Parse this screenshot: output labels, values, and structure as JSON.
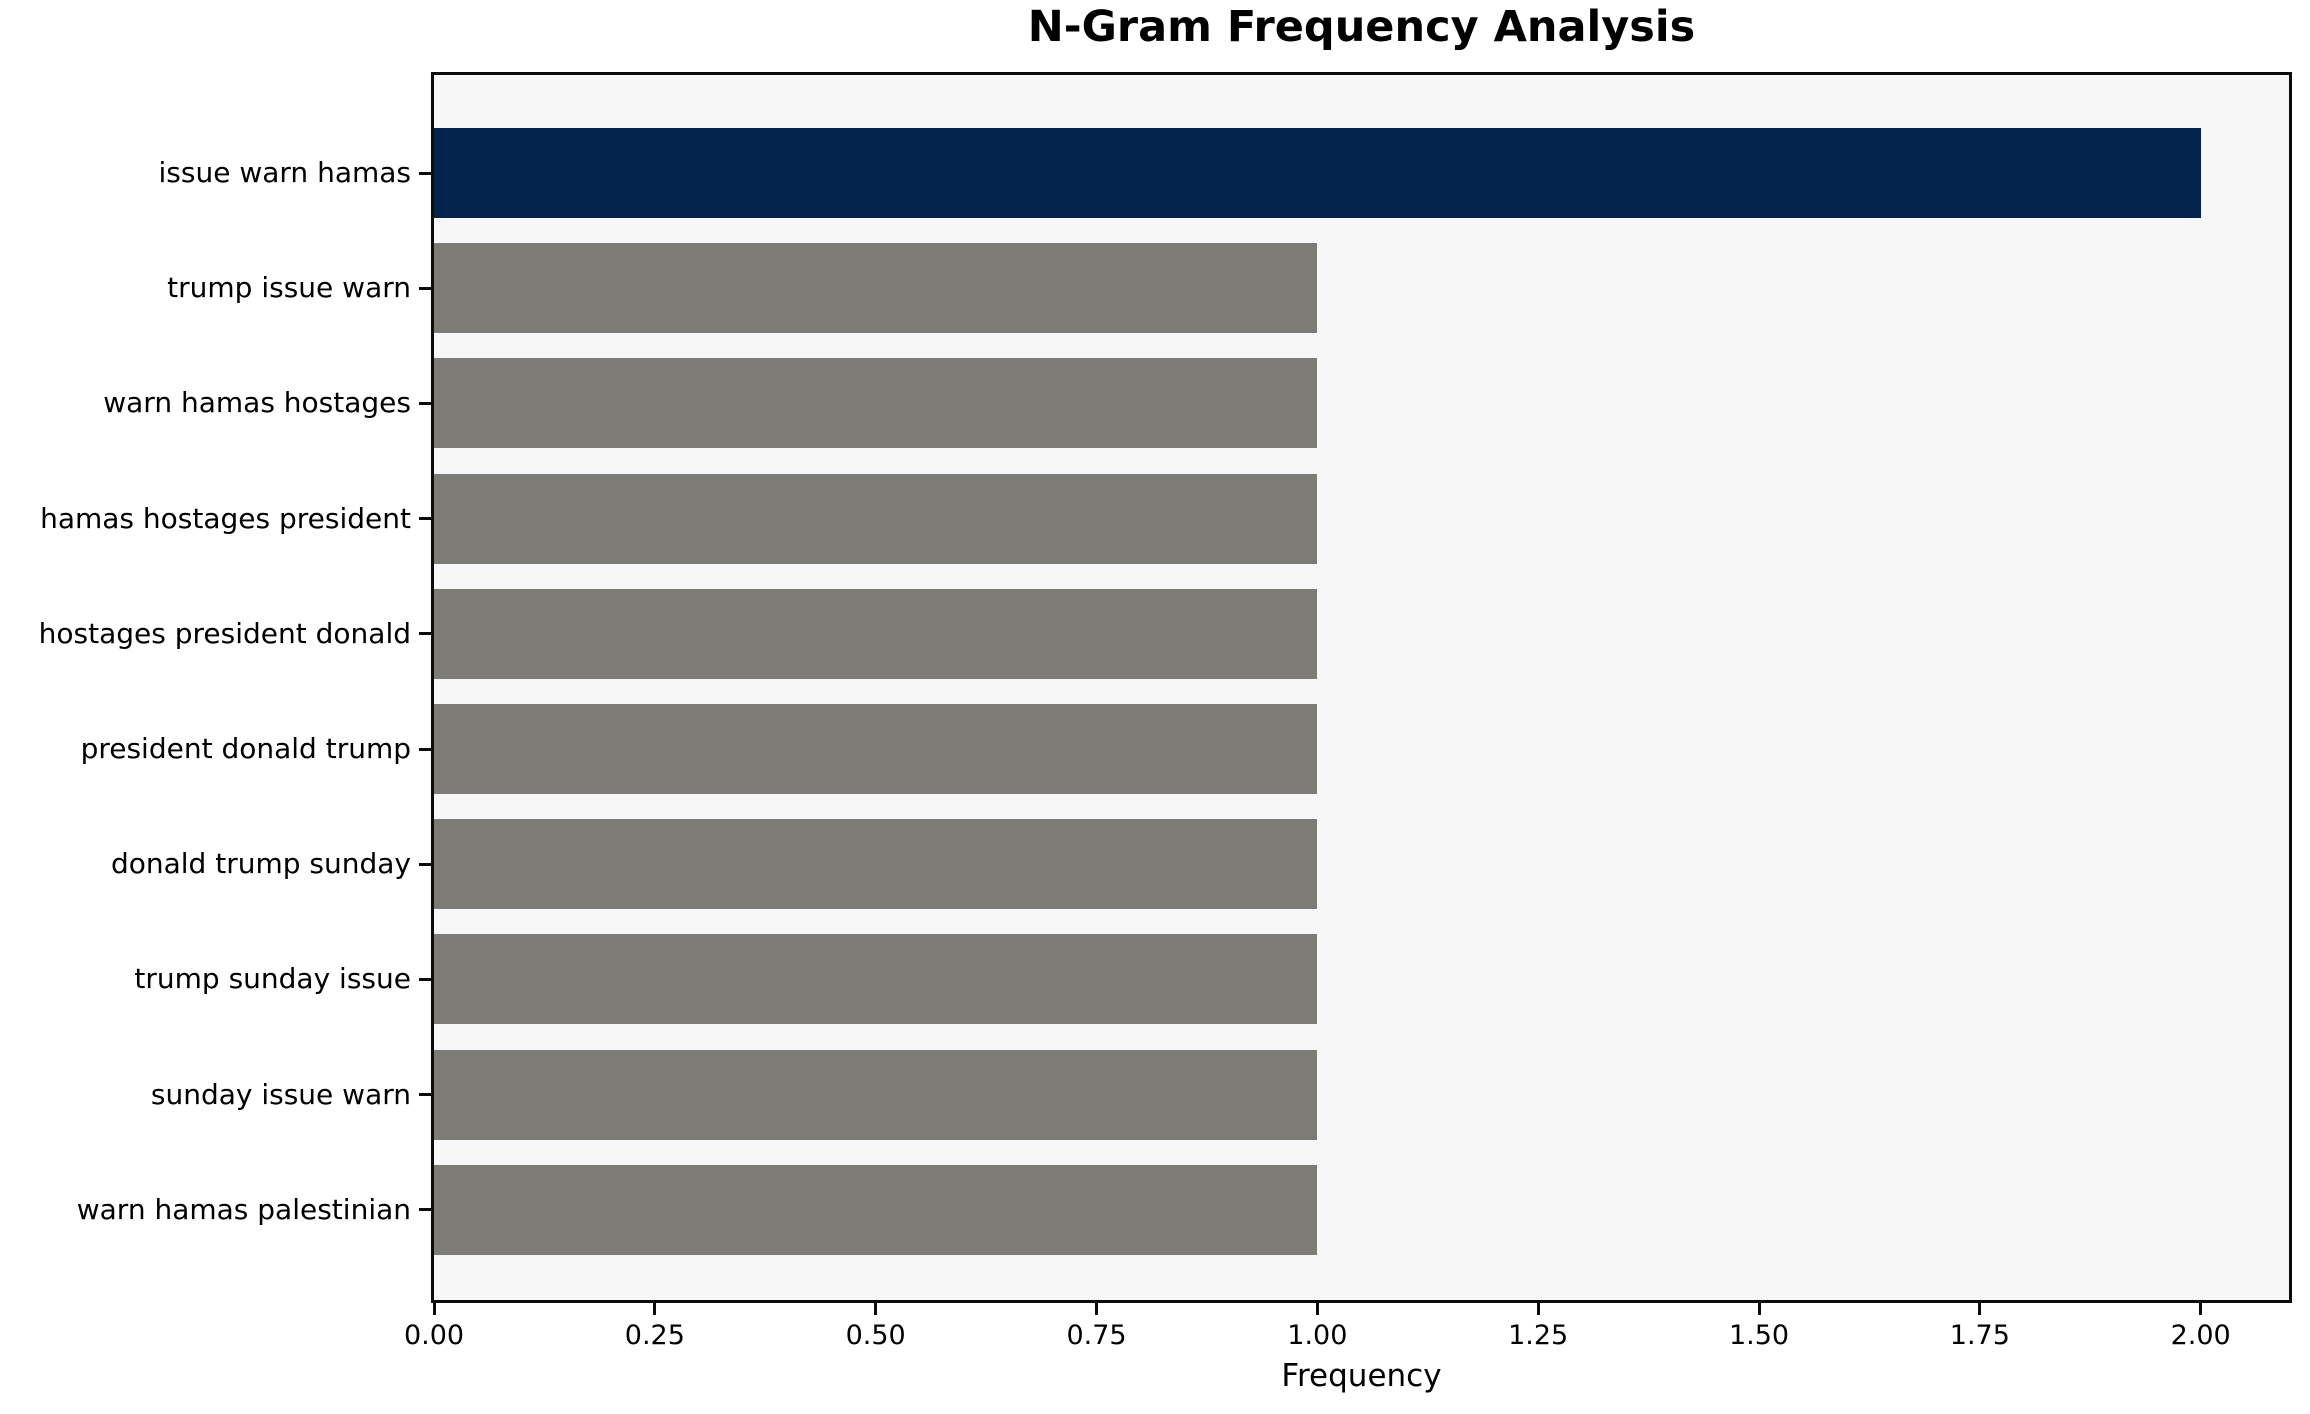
{
  "chart_data": {
    "type": "bar",
    "orientation": "horizontal",
    "title": "N-Gram Frequency Analysis",
    "xlabel": "Frequency",
    "ylabel": "",
    "categories": [
      "issue warn hamas",
      "trump issue warn",
      "warn hamas hostages",
      "hamas hostages president",
      "hostages president donald",
      "president donald trump",
      "donald trump sunday",
      "trump sunday issue",
      "sunday issue warn",
      "warn hamas palestinian"
    ],
    "values": [
      2,
      1,
      1,
      1,
      1,
      1,
      1,
      1,
      1,
      1
    ],
    "highlight_index": 0,
    "xlim": [
      0,
      2.1
    ],
    "xticks": [
      0,
      0.25,
      0.5,
      0.75,
      1.0,
      1.25,
      1.5,
      1.75,
      2.0
    ],
    "xtick_labels": [
      "0.00",
      "0.25",
      "0.50",
      "0.75",
      "1.00",
      "1.25",
      "1.50",
      "1.75",
      "2.00"
    ],
    "grid": false,
    "legend": null,
    "colors": {
      "highlight_bar": "#02234b",
      "default_bar": "#7d7b76",
      "plot_background": "#f7f7f7",
      "figure_background": "#ffffff",
      "axis": "#0b0b0b",
      "text": "#000000"
    }
  }
}
